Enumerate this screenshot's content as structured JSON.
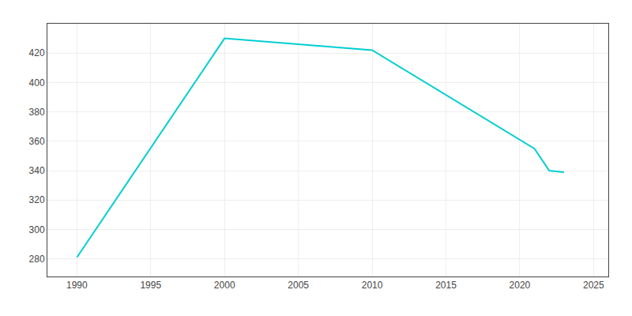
{
  "chart_data": {
    "type": "line",
    "x": [
      1990,
      2000,
      2010,
      2020,
      2021,
      2022,
      2023
    ],
    "values": [
      281,
      430,
      422,
      361,
      355,
      340,
      339
    ],
    "color": "#00CED1",
    "xlim": [
      1988,
      2026
    ],
    "ylim": [
      268,
      440
    ],
    "xticks": [
      1990,
      1995,
      2000,
      2005,
      2010,
      2015,
      2020,
      2025
    ],
    "yticks": [
      280,
      300,
      320,
      340,
      360,
      380,
      400,
      420
    ],
    "grid": true
  }
}
